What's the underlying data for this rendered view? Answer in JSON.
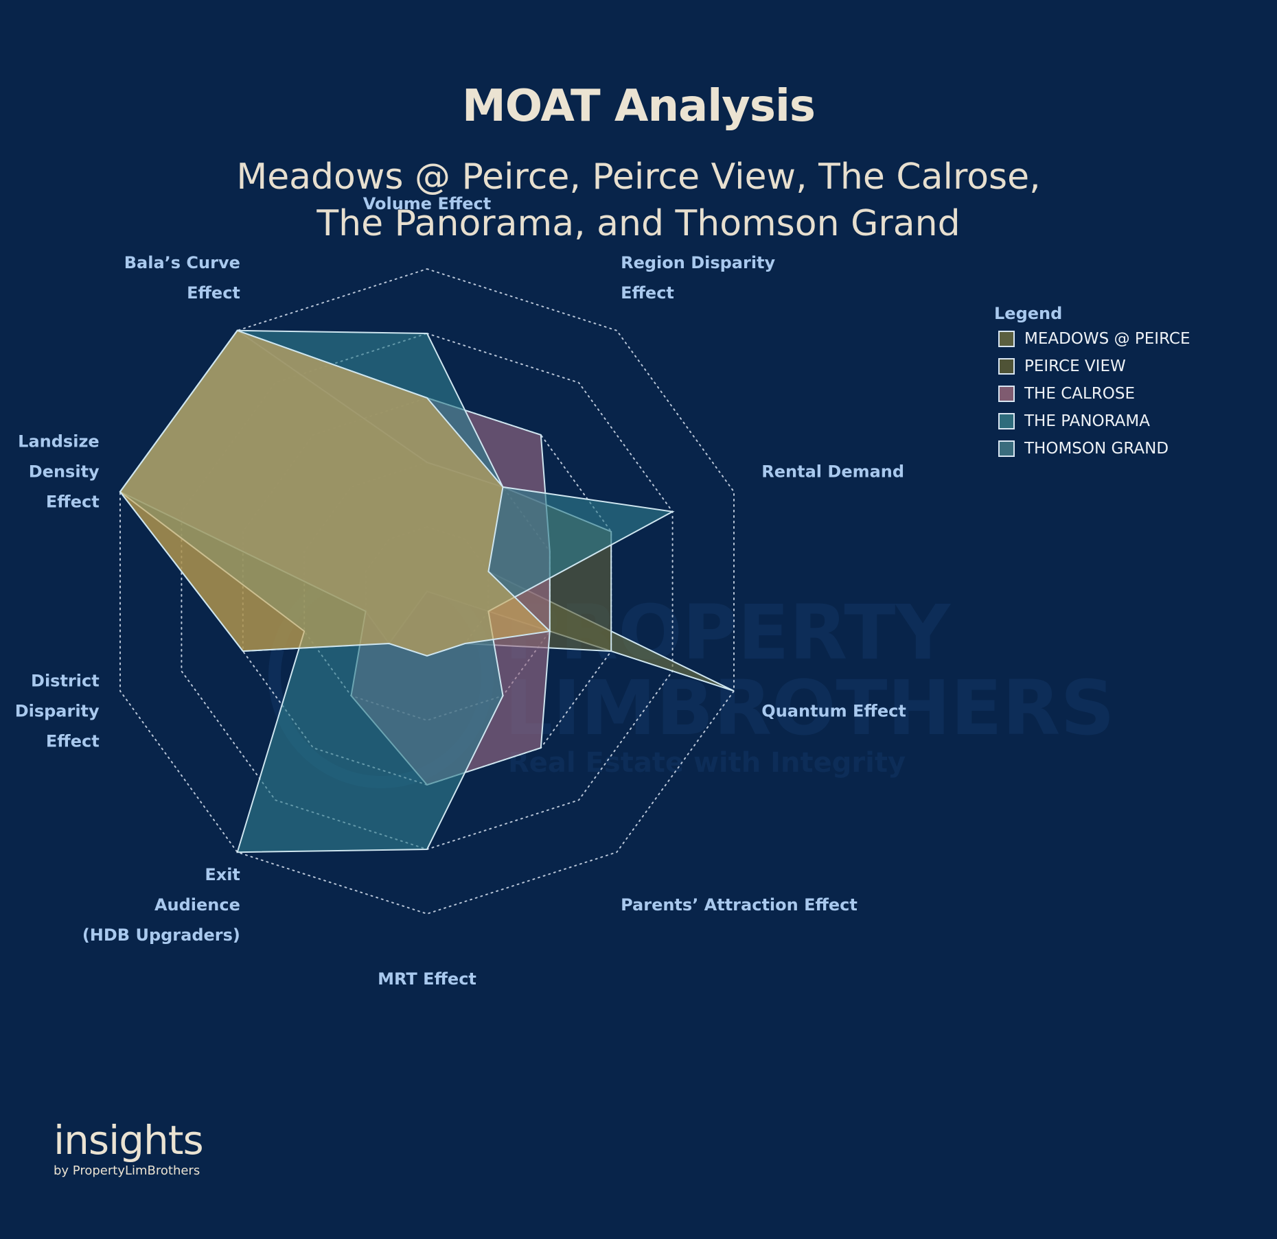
{
  "header": {
    "title": "MOAT Analysis",
    "subtitle_line1": "Meadows @ Peirce, Peirce View, The Calrose,",
    "subtitle_line2": "The Panorama, and Thomson Grand"
  },
  "legend": {
    "title": "Legend",
    "items": [
      {
        "label": "MEADOWS @ PEIRCE",
        "color": "#5b5f3f"
      },
      {
        "label": "PEIRCE VIEW",
        "color": "#4f5336"
      },
      {
        "label": "THE CALROSE",
        "color": "#7f5b70"
      },
      {
        "label": "THE PANORAMA",
        "color": "#2e6c7c"
      },
      {
        "label": "THOMSON GRAND",
        "color": "#3a6c7d"
      }
    ]
  },
  "watermark": {
    "line1": "PROPERTY",
    "line2": "LIMBROTHERS",
    "line3": "Real Estate with Integrity"
  },
  "brand": {
    "name": "insights",
    "byline": "by PropertyLimBrothers"
  },
  "chart_data": {
    "type": "radar",
    "title": "MOAT Analysis",
    "axes": [
      {
        "label": [
          "Volume Effect"
        ]
      },
      {
        "label": [
          "Region Disparity",
          "Effect"
        ]
      },
      {
        "label": [
          "Rental Demand"
        ]
      },
      {
        "label": [
          "Quantum Effect"
        ]
      },
      {
        "label": [
          "Parents’ Attraction Effect"
        ]
      },
      {
        "label": [
          "MRT Effect"
        ]
      },
      {
        "label": [
          "Exit",
          "Audience",
          "(HDB Upgraders)"
        ]
      },
      {
        "label": [
          "District",
          "Disparity",
          "Effect"
        ]
      },
      {
        "label": [
          "Landsize",
          "Density",
          "Effect"
        ]
      },
      {
        "label": [
          "Bala’s Curve",
          "Effect"
        ]
      }
    ],
    "levels": 5,
    "range": [
      0,
      5
    ],
    "series": [
      {
        "name": "MEADOWS @ PEIRCE",
        "color": "#6e7242",
        "values": [
          3,
          2,
          1,
          5,
          0,
          0,
          1,
          1,
          5,
          5
        ]
      },
      {
        "name": "PEIRCE VIEW",
        "color": "#5d5f3a",
        "values": [
          2,
          2,
          3,
          3,
          1,
          1,
          1,
          3,
          5,
          5
        ]
      },
      {
        "name": "THE CALROSE",
        "color": "#9a6b84",
        "values": [
          3,
          3,
          2,
          2,
          3,
          3,
          2,
          1,
          5,
          5
        ]
      },
      {
        "name": "THE PANORAMA",
        "color": "#2f7d8c",
        "values": [
          4,
          2,
          4,
          1,
          2,
          4,
          5,
          2,
          5,
          5
        ]
      },
      {
        "name": "THOMSON GRAND",
        "color": "#c9a655",
        "values": [
          3,
          2,
          1,
          2,
          1,
          1,
          1,
          3,
          5,
          5
        ]
      }
    ]
  }
}
